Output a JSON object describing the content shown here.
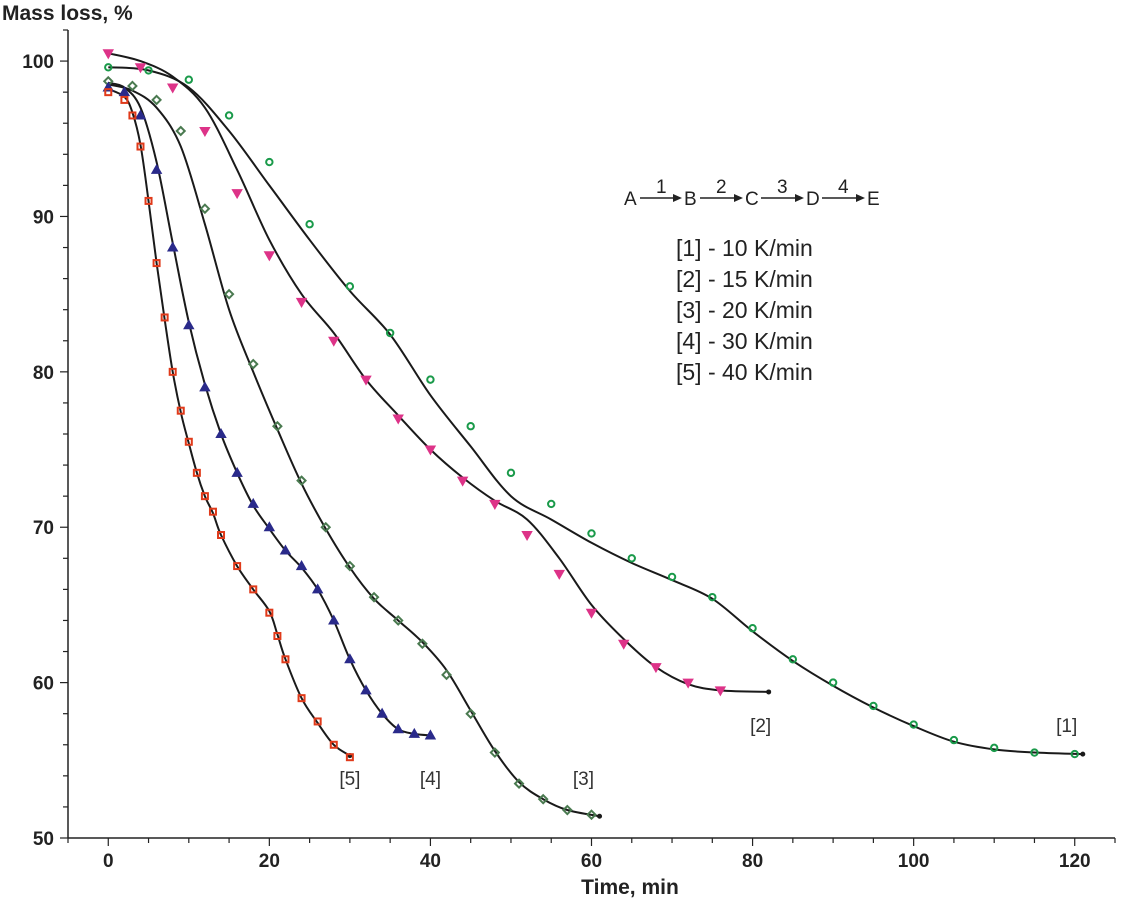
{
  "chart_data": {
    "type": "scatter",
    "xlabel": "Time, min",
    "ylabel": "Mass loss, %",
    "xlim": [
      -5,
      125
    ],
    "ylim": [
      50,
      102
    ],
    "xticks": [
      "0",
      "20",
      "40",
      "60",
      "80",
      "100",
      "120"
    ],
    "yticks": [
      "50",
      "60",
      "70",
      "80",
      "90",
      "100"
    ],
    "scheme": {
      "species": [
        "A",
        "B",
        "C",
        "D",
        "E"
      ],
      "steps": [
        "1",
        "2",
        "3",
        "4"
      ]
    },
    "legend": [
      "[1] - 10 K/min",
      "[2] - 15 K/min",
      "[3] - 20 K/min",
      "[4] - 30 K/min",
      "[5] - 40 K/min"
    ],
    "series": [
      {
        "name": "[1]",
        "color": "#1a9a4a",
        "marker": "circle",
        "points": [
          [
            0,
            99.6
          ],
          [
            5,
            99.4
          ],
          [
            10,
            98.8
          ],
          [
            15,
            96.5
          ],
          [
            20,
            93.5
          ],
          [
            25,
            89.5
          ],
          [
            30,
            85.5
          ],
          [
            35,
            82.5
          ],
          [
            40,
            79.5
          ],
          [
            45,
            76.5
          ],
          [
            50,
            73.5
          ],
          [
            55,
            71.5
          ],
          [
            60,
            69.6
          ],
          [
            65,
            68.0
          ],
          [
            70,
            66.8
          ],
          [
            75,
            65.5
          ],
          [
            80,
            63.5
          ],
          [
            85,
            61.5
          ],
          [
            90,
            60.0
          ],
          [
            95,
            58.5
          ],
          [
            100,
            57.3
          ],
          [
            105,
            56.3
          ],
          [
            110,
            55.8
          ],
          [
            115,
            55.5
          ],
          [
            120,
            55.4
          ]
        ]
      },
      {
        "name": "[2]",
        "color": "#dd3388",
        "marker": "triangle-down",
        "points": [
          [
            0,
            100.5
          ],
          [
            4,
            99.6
          ],
          [
            8,
            98.3
          ],
          [
            12,
            95.5
          ],
          [
            16,
            91.5
          ],
          [
            20,
            87.5
          ],
          [
            24,
            84.5
          ],
          [
            28,
            82.0
          ],
          [
            32,
            79.5
          ],
          [
            36,
            77.0
          ],
          [
            40,
            75.0
          ],
          [
            44,
            73.0
          ],
          [
            48,
            71.5
          ],
          [
            52,
            69.5
          ],
          [
            56,
            67.0
          ],
          [
            60,
            64.5
          ],
          [
            64,
            62.5
          ],
          [
            68,
            61.0
          ],
          [
            72,
            60.0
          ],
          [
            76,
            59.5
          ]
        ]
      },
      {
        "name": "[3]",
        "color": "#4a7a50",
        "marker": "diamond",
        "points": [
          [
            0,
            98.7
          ],
          [
            3,
            98.4
          ],
          [
            6,
            97.5
          ],
          [
            9,
            95.5
          ],
          [
            12,
            90.5
          ],
          [
            15,
            85.0
          ],
          [
            18,
            80.5
          ],
          [
            21,
            76.5
          ],
          [
            24,
            73.0
          ],
          [
            27,
            70.0
          ],
          [
            30,
            67.5
          ],
          [
            33,
            65.5
          ],
          [
            36,
            64.0
          ],
          [
            39,
            62.5
          ],
          [
            42,
            60.5
          ],
          [
            45,
            58.0
          ],
          [
            48,
            55.5
          ],
          [
            51,
            53.5
          ],
          [
            54,
            52.5
          ],
          [
            57,
            51.8
          ],
          [
            60,
            51.5
          ]
        ]
      },
      {
        "name": "[4]",
        "color": "#2a2a8a",
        "marker": "triangle-up",
        "points": [
          [
            0,
            98.3
          ],
          [
            2,
            98.0
          ],
          [
            4,
            96.5
          ],
          [
            6,
            93.0
          ],
          [
            8,
            88.0
          ],
          [
            10,
            83.0
          ],
          [
            12,
            79.0
          ],
          [
            14,
            76.0
          ],
          [
            16,
            73.5
          ],
          [
            18,
            71.5
          ],
          [
            20,
            70.0
          ],
          [
            22,
            68.5
          ],
          [
            24,
            67.5
          ],
          [
            26,
            66.0
          ],
          [
            28,
            64.0
          ],
          [
            30,
            61.5
          ],
          [
            32,
            59.5
          ],
          [
            34,
            58.0
          ],
          [
            36,
            57.0
          ],
          [
            38,
            56.7
          ],
          [
            40,
            56.6
          ]
        ]
      },
      {
        "name": "[5]",
        "color": "#e03a1a",
        "marker": "square",
        "points": [
          [
            0,
            98.0
          ],
          [
            2,
            97.5
          ],
          [
            3,
            96.5
          ],
          [
            4,
            94.5
          ],
          [
            5,
            91.0
          ],
          [
            6,
            87.0
          ],
          [
            7,
            83.5
          ],
          [
            8,
            80.0
          ],
          [
            9,
            77.5
          ],
          [
            10,
            75.5
          ],
          [
            11,
            73.5
          ],
          [
            12,
            72.0
          ],
          [
            13,
            71.0
          ],
          [
            14,
            69.5
          ],
          [
            16,
            67.5
          ],
          [
            18,
            66.0
          ],
          [
            20,
            64.5
          ],
          [
            21,
            63.0
          ],
          [
            22,
            61.5
          ],
          [
            24,
            59.0
          ],
          [
            26,
            57.5
          ],
          [
            28,
            56.0
          ],
          [
            30,
            55.2
          ]
        ]
      }
    ],
    "fits": [
      {
        "name": "[1]",
        "points": [
          [
            0,
            99.6
          ],
          [
            5,
            99.4
          ],
          [
            10,
            98.3
          ],
          [
            15,
            95.5
          ],
          [
            20,
            92.0
          ],
          [
            25,
            88.5
          ],
          [
            30,
            85.2
          ],
          [
            35,
            82.4
          ],
          [
            40,
            78.5
          ],
          [
            45,
            75.2
          ],
          [
            50,
            72.0
          ],
          [
            55,
            70.5
          ],
          [
            60,
            69.0
          ],
          [
            65,
            67.7
          ],
          [
            70,
            66.6
          ],
          [
            75,
            65.4
          ],
          [
            80,
            63.3
          ],
          [
            85,
            61.4
          ],
          [
            90,
            59.8
          ],
          [
            95,
            58.4
          ],
          [
            100,
            57.2
          ],
          [
            105,
            56.2
          ],
          [
            110,
            55.7
          ],
          [
            115,
            55.5
          ],
          [
            121,
            55.4
          ]
        ]
      },
      {
        "name": "[2]",
        "points": [
          [
            0,
            100.5
          ],
          [
            4,
            100.0
          ],
          [
            8,
            99.0
          ],
          [
            12,
            97.0
          ],
          [
            16,
            93.0
          ],
          [
            20,
            88.5
          ],
          [
            24,
            85.0
          ],
          [
            28,
            82.5
          ],
          [
            32,
            79.5
          ],
          [
            36,
            77.2
          ],
          [
            40,
            75.0
          ],
          [
            44,
            73.2
          ],
          [
            48,
            71.7
          ],
          [
            52,
            70.5
          ],
          [
            56,
            68.0
          ],
          [
            60,
            65.0
          ],
          [
            64,
            62.8
          ],
          [
            68,
            61.0
          ],
          [
            72,
            59.9
          ],
          [
            76,
            59.5
          ],
          [
            82,
            59.4
          ]
        ]
      },
      {
        "name": "[3]",
        "points": [
          [
            0,
            98.5
          ],
          [
            3,
            98.1
          ],
          [
            6,
            97.0
          ],
          [
            9,
            94.5
          ],
          [
            12,
            89.5
          ],
          [
            15,
            84.0
          ],
          [
            18,
            80.0
          ],
          [
            21,
            76.3
          ],
          [
            24,
            72.8
          ],
          [
            27,
            69.9
          ],
          [
            30,
            67.4
          ],
          [
            33,
            65.4
          ],
          [
            36,
            64.0
          ],
          [
            39,
            62.6
          ],
          [
            42,
            60.8
          ],
          [
            45,
            58.2
          ],
          [
            48,
            55.6
          ],
          [
            51,
            53.6
          ],
          [
            54,
            52.5
          ],
          [
            57,
            51.8
          ],
          [
            61,
            51.4
          ]
        ]
      },
      {
        "name": "[4]",
        "points": [
          [
            0,
            98.6
          ],
          [
            2,
            98.3
          ],
          [
            4,
            97.0
          ],
          [
            6,
            93.5
          ],
          [
            8,
            88.3
          ],
          [
            10,
            83.2
          ],
          [
            12,
            79.2
          ],
          [
            14,
            76.0
          ],
          [
            16,
            73.5
          ],
          [
            18,
            71.4
          ],
          [
            20,
            69.9
          ],
          [
            22,
            68.5
          ],
          [
            24,
            67.4
          ],
          [
            26,
            66.0
          ],
          [
            28,
            64.0
          ],
          [
            30,
            61.5
          ],
          [
            32,
            59.5
          ],
          [
            34,
            58.0
          ],
          [
            36,
            57.0
          ],
          [
            38,
            56.7
          ],
          [
            40,
            56.6
          ]
        ]
      },
      {
        "name": "[5]",
        "points": [
          [
            0,
            98.2
          ],
          [
            2,
            97.7
          ],
          [
            3,
            96.7
          ],
          [
            4,
            94.6
          ],
          [
            5,
            91.0
          ],
          [
            6,
            87.0
          ],
          [
            7,
            83.4
          ],
          [
            8,
            80.0
          ],
          [
            9,
            77.4
          ],
          [
            10,
            75.4
          ],
          [
            11,
            73.5
          ],
          [
            12,
            72.0
          ],
          [
            13,
            70.9
          ],
          [
            14,
            69.5
          ],
          [
            16,
            67.5
          ],
          [
            18,
            66.0
          ],
          [
            20,
            64.6
          ],
          [
            21,
            63.1
          ],
          [
            22,
            61.5
          ],
          [
            24,
            59.0
          ],
          [
            26,
            57.4
          ],
          [
            28,
            56.0
          ],
          [
            30,
            55.3
          ]
        ]
      }
    ],
    "curve_labels": [
      {
        "text": "[1]",
        "x": 119,
        "y": 57.2
      },
      {
        "text": "[2]",
        "x": 81,
        "y": 57.2
      },
      {
        "text": "[3]",
        "x": 59,
        "y": 53.8
      },
      {
        "text": "[4]",
        "x": 40,
        "y": 53.8
      },
      {
        "text": "[5]",
        "x": 30,
        "y": 53.8
      }
    ],
    "grid": false
  }
}
